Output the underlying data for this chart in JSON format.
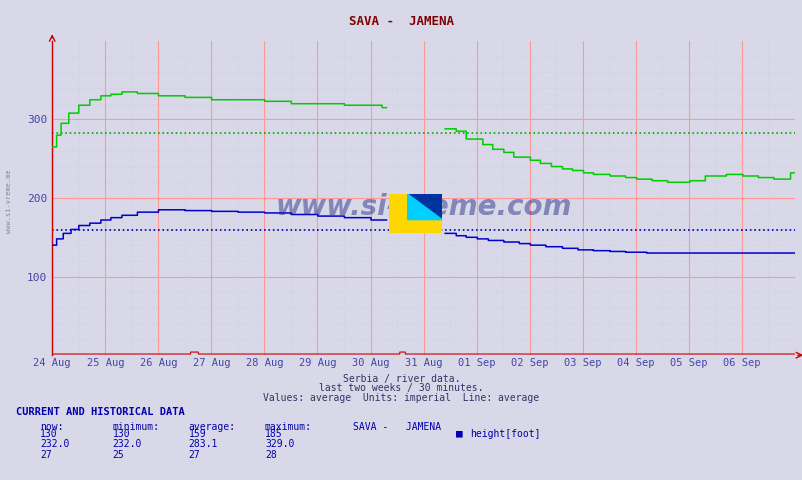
{
  "title": "SAVA -  JAMENA",
  "title_color": "#800000",
  "bg_color": "#d8d8e8",
  "plot_bg_color": "#d8d8e8",
  "x_label_color": "#4444aa",
  "watermark": "www.si-vreme.com",
  "subtitle_lines": [
    "Serbia / river data.",
    "last two weeks / 30 minutes.",
    "Values: average  Units: imperial  Line: average"
  ],
  "footer_header": "CURRENT AND HISTORICAL DATA",
  "footer_row1": [
    "130",
    "130",
    "159",
    "185"
  ],
  "footer_row2": [
    "232.0",
    "232.0",
    "283.1",
    "329.0"
  ],
  "footer_row3": [
    "27",
    "25",
    "27",
    "28"
  ],
  "footer_legend": "height[foot]",
  "x_tick_labels": [
    "24 Aug",
    "25 Aug",
    "26 Aug",
    "27 Aug",
    "28 Aug",
    "29 Aug",
    "30 Aug",
    "31 Aug",
    "01 Sep",
    "02 Sep",
    "03 Sep",
    "04 Sep",
    "05 Sep",
    "06 Sep"
  ],
  "ylim": [
    0,
    400
  ],
  "yticks": [
    100,
    200,
    300
  ],
  "green_avg": 283.1,
  "blue_avg": 159,
  "green_color": "#00cc00",
  "blue_color": "#0000cc",
  "red_color": "#cc0000",
  "green_dot_color": "#00aa00",
  "blue_dot_color": "#0000aa",
  "grid_major_color": "#ff9999",
  "grid_minor_color": "#ccccdd"
}
